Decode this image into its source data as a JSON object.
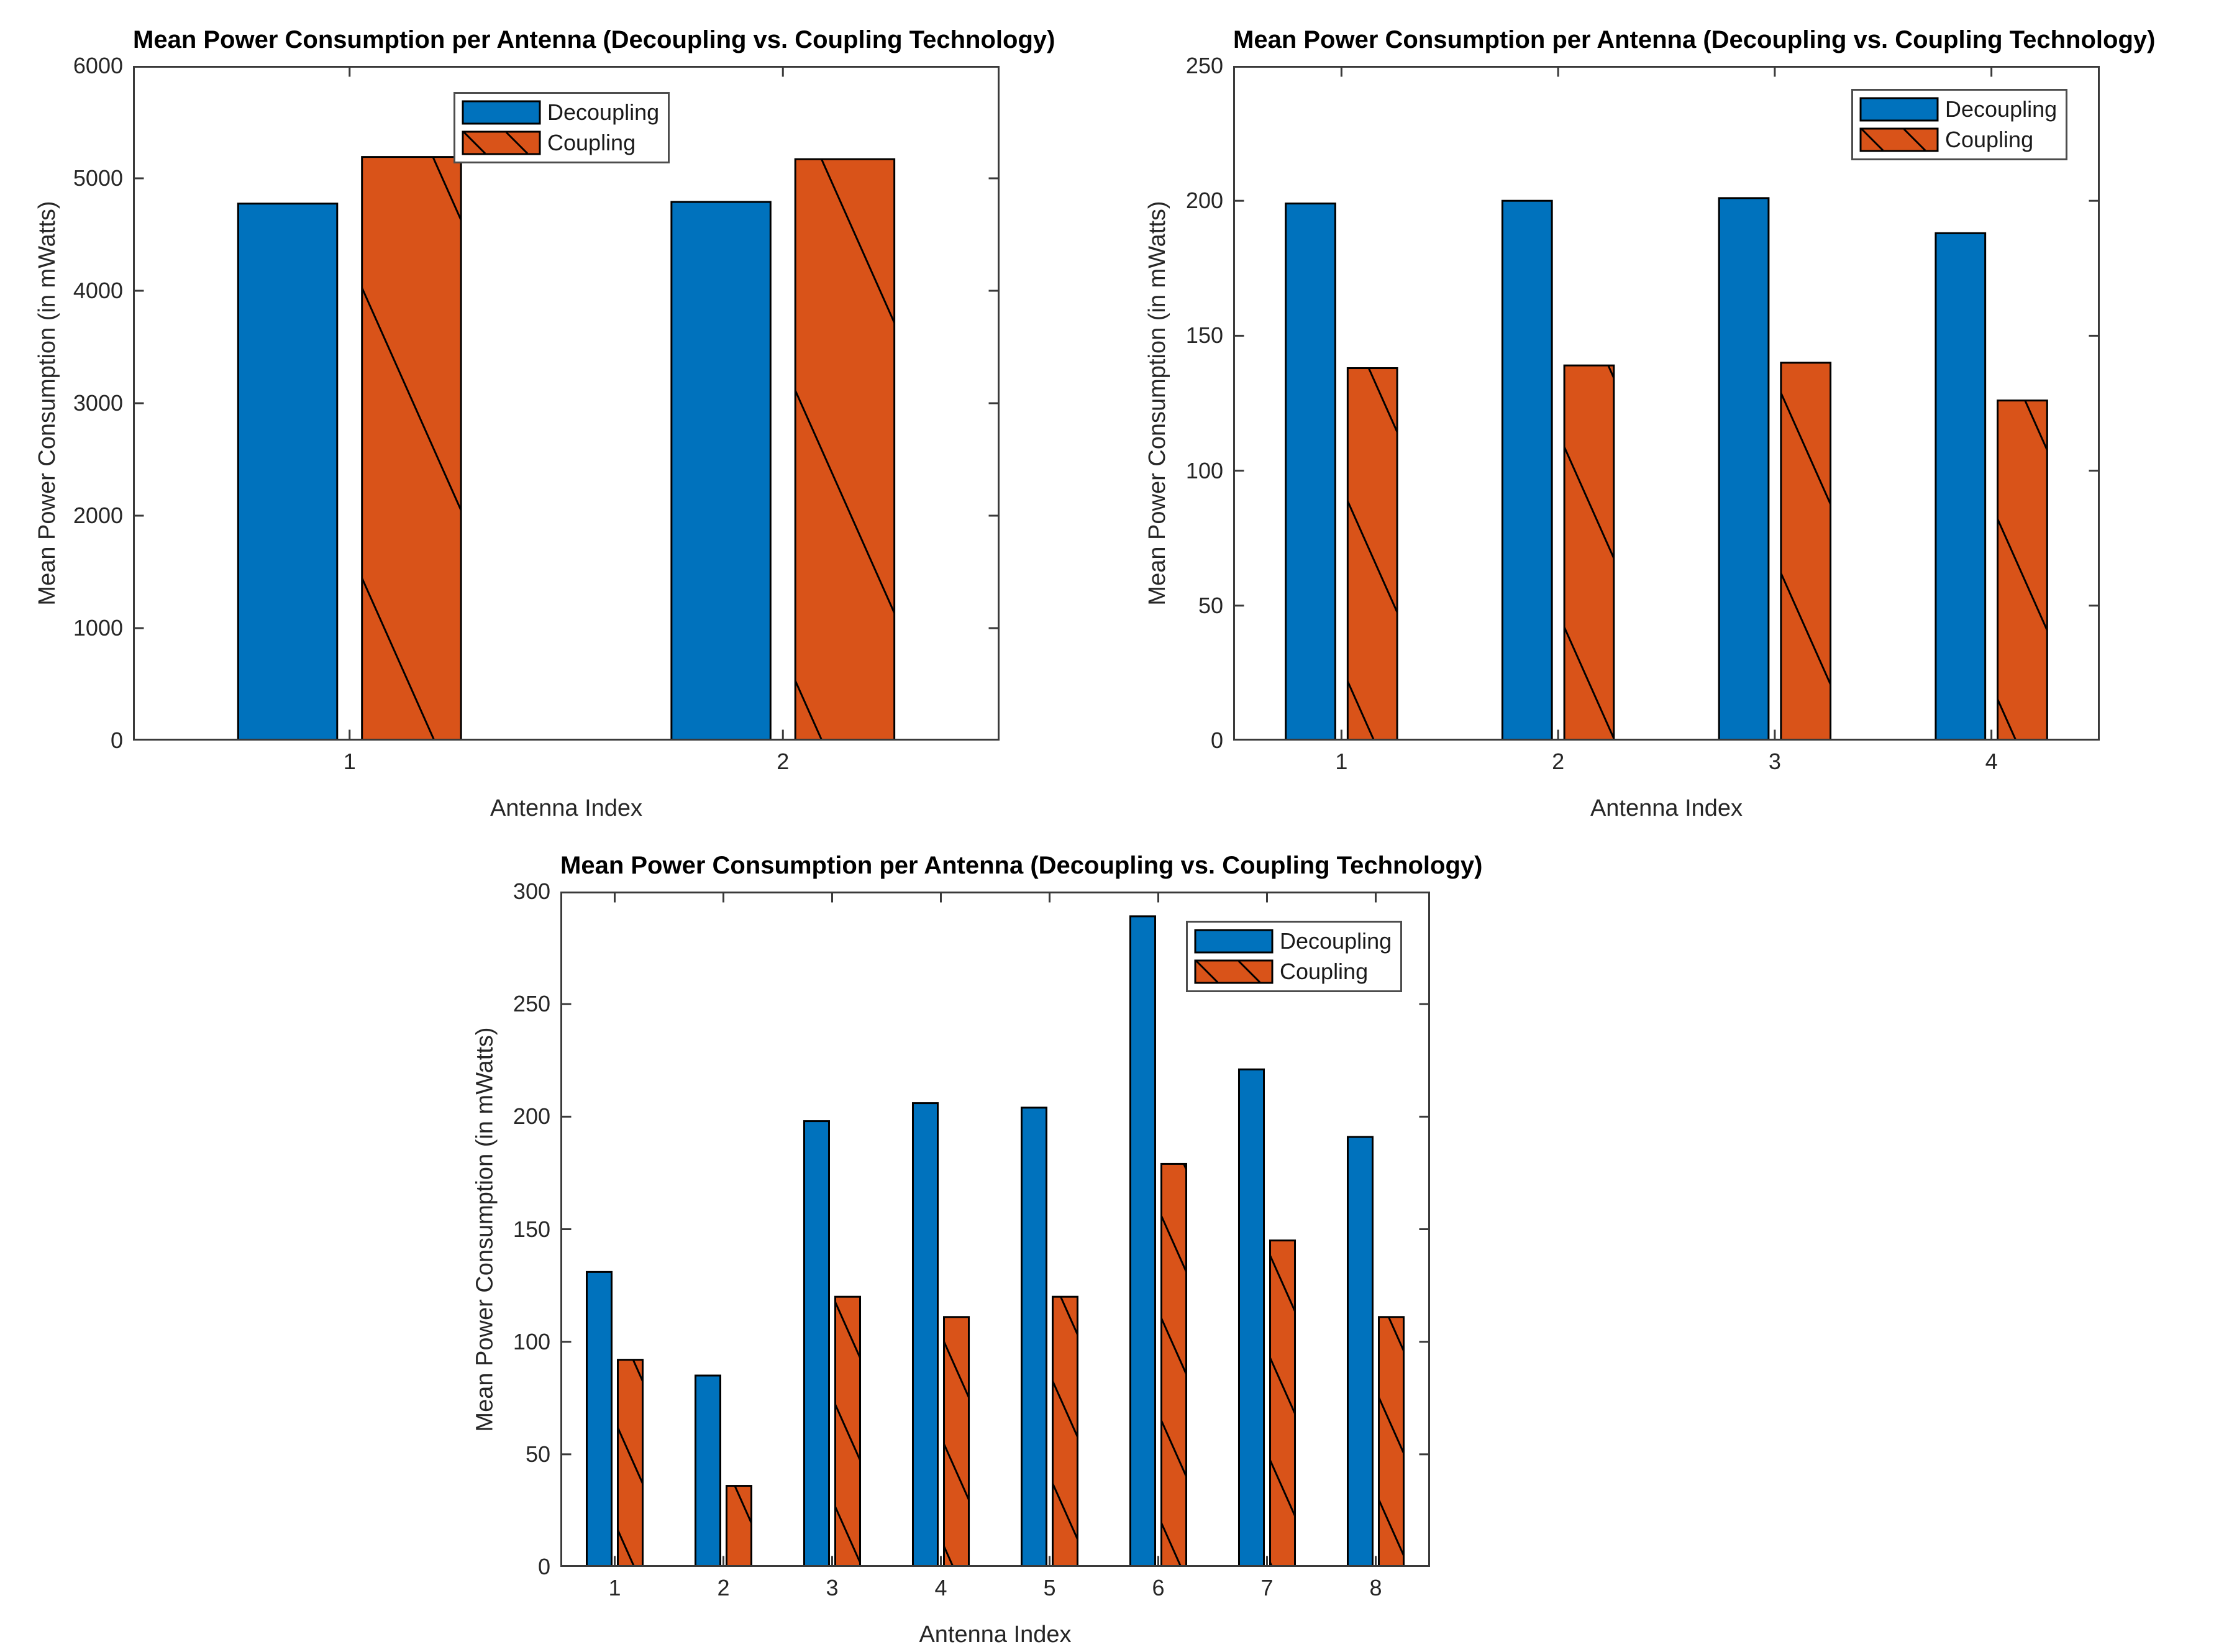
{
  "figure": {
    "background": "#ffffff"
  },
  "styles": {
    "series_colors": [
      "#0072BD",
      "#D95319"
    ],
    "bar_edge": "#000000",
    "hatch_color": "#000000",
    "axis_color": "#3a3a3a",
    "tick_label_color": "#262626",
    "title_color": "#000000",
    "legend_border": "#4d4d4d"
  },
  "chart_data": [
    {
      "id": "top-left",
      "type": "bar",
      "title": "Mean Power Consumption per Antenna (Decoupling vs. Coupling Technology)",
      "xlabel": "Antenna Index",
      "ylabel": "Mean Power Consumption (in mWatts)",
      "categories": [
        "1",
        "2"
      ],
      "series": [
        {
          "name": "Decoupling",
          "hatch": false,
          "values": [
            4775,
            4790
          ]
        },
        {
          "name": "Coupling",
          "hatch": true,
          "values": [
            5190,
            5170
          ]
        }
      ],
      "ylim": [
        0,
        6000
      ],
      "yticks": [
        "0",
        "1000",
        "2000",
        "3000",
        "4000",
        "5000",
        "6000"
      ],
      "xlim": [
        0.5,
        2.5
      ],
      "grid": false,
      "legend_position": "inside-top-center-left"
    },
    {
      "id": "top-right",
      "type": "bar",
      "title": "Mean Power Consumption per Antenna (Decoupling vs. Coupling Technology)",
      "xlabel": "Antenna Index",
      "ylabel": "Mean Power Consumption (in mWatts)",
      "categories": [
        "1",
        "2",
        "3",
        "4"
      ],
      "series": [
        {
          "name": "Decoupling",
          "hatch": false,
          "values": [
            199,
            200,
            201,
            188
          ]
        },
        {
          "name": "Coupling",
          "hatch": true,
          "values": [
            138,
            139,
            140,
            126
          ]
        }
      ],
      "ylim": [
        0,
        250
      ],
      "yticks": [
        "0",
        "50",
        "100",
        "150",
        "200",
        "250"
      ],
      "xlim": [
        0.5,
        4.5
      ],
      "grid": false,
      "legend_position": "inside-top-right"
    },
    {
      "id": "bottom-center",
      "type": "bar",
      "title": "Mean Power Consumption per Antenna (Decoupling vs. Coupling Technology)",
      "xlabel": "Antenna Index",
      "ylabel": "Mean Power Consumption (in mWatts)",
      "categories": [
        "1",
        "2",
        "3",
        "4",
        "5",
        "6",
        "7",
        "8"
      ],
      "series": [
        {
          "name": "Decoupling",
          "hatch": false,
          "values": [
            131,
            85,
            198,
            206,
            204,
            289,
            221,
            191
          ]
        },
        {
          "name": "Coupling",
          "hatch": true,
          "values": [
            92,
            36,
            120,
            111,
            120,
            179,
            145,
            111
          ]
        }
      ],
      "ylim": [
        0,
        300
      ],
      "yticks": [
        "0",
        "50",
        "100",
        "150",
        "200",
        "250",
        "300"
      ],
      "xlim": [
        0.5,
        8.5
      ],
      "grid": false,
      "legend_position": "inside-top-right"
    }
  ]
}
